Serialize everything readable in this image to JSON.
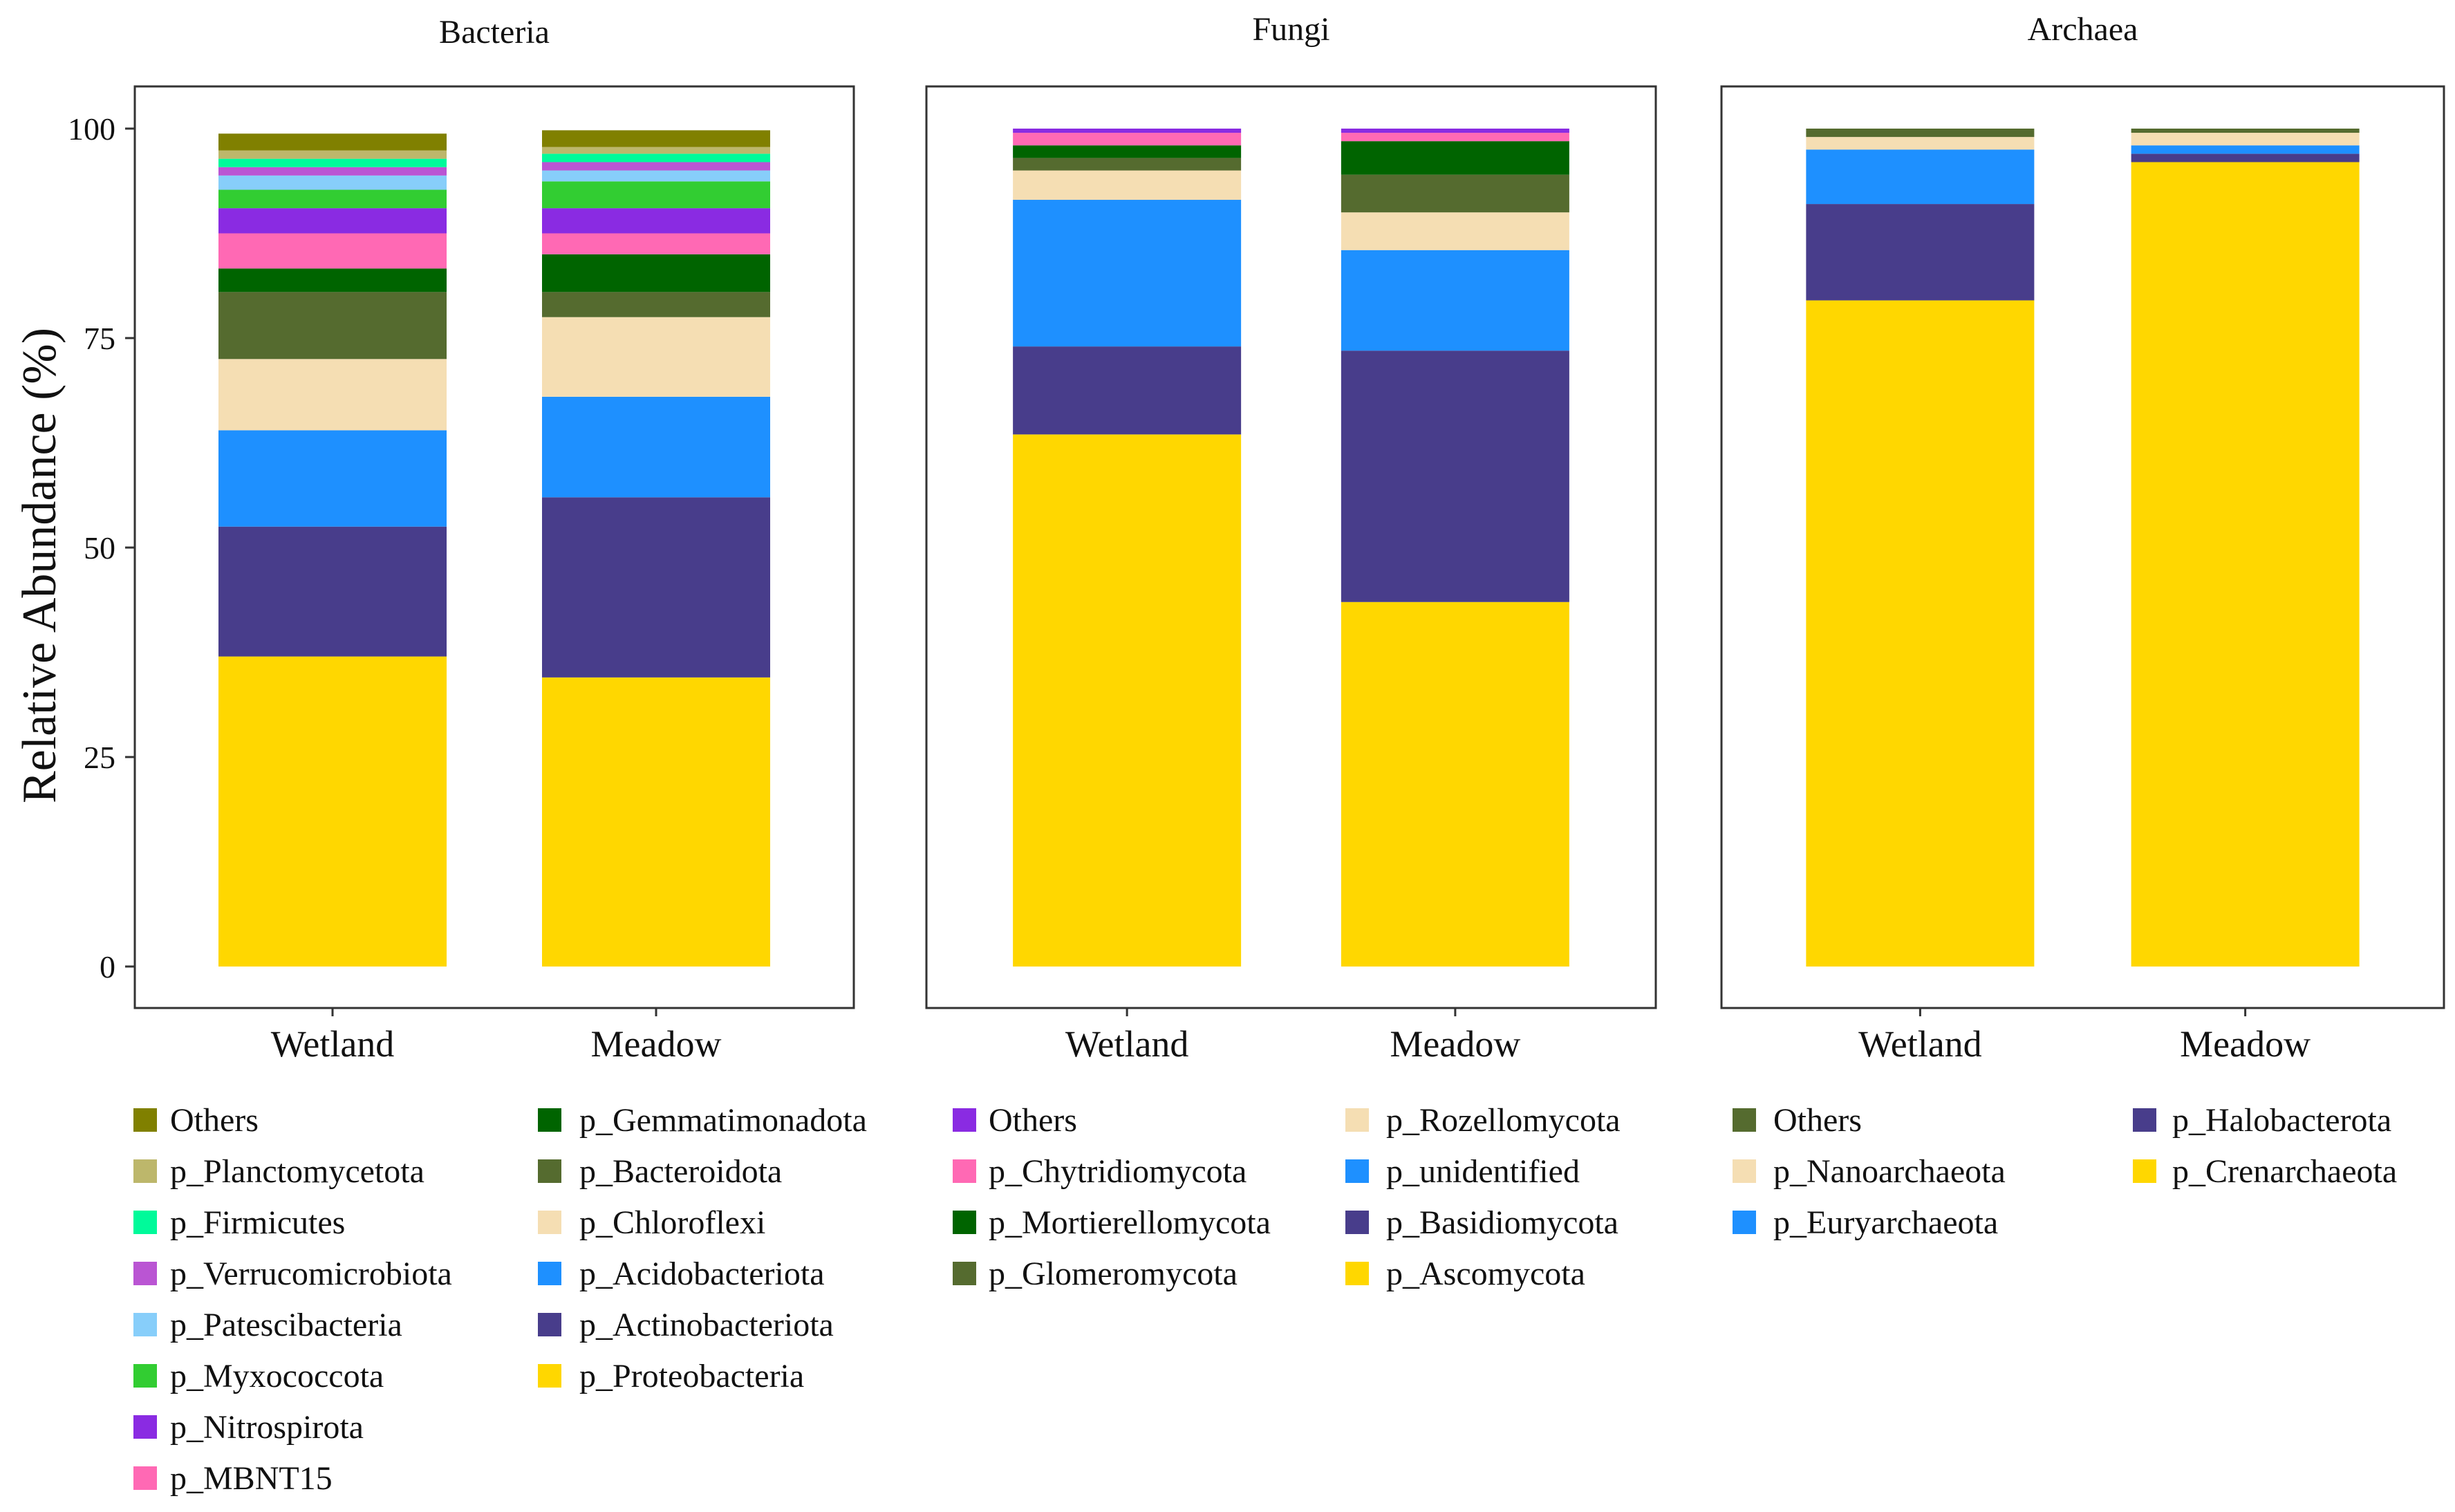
{
  "y_axis_label": "Relative Abundance (%)",
  "chart_data": [
    {
      "type": "bar",
      "stacked": true,
      "title": "Bacteria",
      "xlabel": "",
      "ylabel": "Relative Abundance (%)",
      "ylim": [
        0,
        100
      ],
      "y_ticks": [
        0,
        25,
        50,
        75,
        100
      ],
      "categories": [
        "Wetland",
        "Meadow"
      ],
      "series": [
        {
          "name": "p_Proteobacteria",
          "color": "#FFD700",
          "values": [
            37.0,
            34.5
          ]
        },
        {
          "name": "p_Actinobacteriota",
          "color": "#483D8B",
          "values": [
            15.5,
            21.5
          ]
        },
        {
          "name": "p_Acidobacteriota",
          "color": "#1E90FF",
          "values": [
            11.5,
            12.0
          ]
        },
        {
          "name": "p_Chloroflexi",
          "color": "#F5DEB3",
          "values": [
            8.5,
            9.5
          ]
        },
        {
          "name": "p_Bacteroidota",
          "color": "#556B2F",
          "values": [
            8.0,
            3.0
          ]
        },
        {
          "name": "p_Gemmatimonadota",
          "color": "#006400",
          "values": [
            2.8,
            4.5
          ]
        },
        {
          "name": "p_MBNT15",
          "color": "#FF69B4",
          "values": [
            4.2,
            2.5
          ]
        },
        {
          "name": "p_Nitrospirota",
          "color": "#8A2BE2",
          "values": [
            3.0,
            3.0
          ]
        },
        {
          "name": "p_Myxococcota",
          "color": "#32CD32",
          "values": [
            2.2,
            3.2
          ]
        },
        {
          "name": "p_Patescibacteria",
          "color": "#87CEFA",
          "values": [
            1.7,
            1.3
          ]
        },
        {
          "name": "p_Verrucomicrobiota",
          "color": "#BA55D3",
          "values": [
            1.0,
            1.0
          ]
        },
        {
          "name": "p_Firmicutes",
          "color": "#00FA9A",
          "values": [
            1.0,
            1.0
          ]
        },
        {
          "name": "p_Planctomycetota",
          "color": "#BDB76B",
          "values": [
            1.0,
            0.8
          ]
        },
        {
          "name": "Others",
          "color": "#808000",
          "values": [
            2.0,
            2.0
          ]
        }
      ],
      "legend_columns": [
        [
          "Others",
          "p_Planctomycetota",
          "p_Firmicutes",
          "p_Verrucomicrobiota",
          "p_Patescibacteria",
          "p_Myxococcota",
          "p_Nitrospirota",
          "p_MBNT15"
        ],
        [
          "p_Gemmatimonadota",
          "p_Bacteroidota",
          "p_Chloroflexi",
          "p_Acidobacteriota",
          "p_Actinobacteriota",
          "p_Proteobacteria"
        ]
      ]
    },
    {
      "type": "bar",
      "stacked": true,
      "title": "Fungi",
      "xlabel": "",
      "ylabel": "Relative Abundance (%)",
      "ylim": [
        0,
        100
      ],
      "y_ticks": [
        0,
        25,
        50,
        75,
        100
      ],
      "categories": [
        "Wetland",
        "Meadow"
      ],
      "series": [
        {
          "name": "p_Ascomycota",
          "color": "#FFD700",
          "values": [
            63.5,
            43.5
          ]
        },
        {
          "name": "p_Basidiomycota",
          "color": "#483D8B",
          "values": [
            10.5,
            30.0
          ]
        },
        {
          "name": "p_unidentified",
          "color": "#1E90FF",
          "values": [
            17.5,
            12.0
          ]
        },
        {
          "name": "p_Rozellomycota",
          "color": "#F5DEB3",
          "values": [
            3.5,
            4.5
          ]
        },
        {
          "name": "p_Glomeromycota",
          "color": "#556B2F",
          "values": [
            1.5,
            4.5
          ]
        },
        {
          "name": "p_Mortierellomycota",
          "color": "#006400",
          "values": [
            1.5,
            4.0
          ]
        },
        {
          "name": "p_Chytridiomycota",
          "color": "#FF69B4",
          "values": [
            1.5,
            1.0
          ]
        },
        {
          "name": "Others",
          "color": "#8A2BE2",
          "values": [
            0.5,
            0.5
          ]
        }
      ],
      "legend_columns": [
        [
          "Others",
          "p_Chytridiomycota",
          "p_Mortierellomycota",
          "p_Glomeromycota"
        ],
        [
          "p_Rozellomycota",
          "p_unidentified",
          "p_Basidiomycota",
          "p_Ascomycota"
        ]
      ]
    },
    {
      "type": "bar",
      "stacked": true,
      "title": "Archaea",
      "xlabel": "",
      "ylabel": "Relative Abundance (%)",
      "ylim": [
        0,
        100
      ],
      "y_ticks": [
        0,
        25,
        50,
        75,
        100
      ],
      "categories": [
        "Wetland",
        "Meadow"
      ],
      "series": [
        {
          "name": "p_Crenarchaeota",
          "color": "#FFD700",
          "values": [
            79.5,
            96.0
          ]
        },
        {
          "name": "p_Halobacterota",
          "color": "#483D8B",
          "values": [
            11.5,
            1.0
          ]
        },
        {
          "name": "p_Euryarchaeota",
          "color": "#1E90FF",
          "values": [
            6.5,
            1.0
          ]
        },
        {
          "name": "p_Nanoarchaeota",
          "color": "#F5DEB3",
          "values": [
            1.5,
            1.5
          ]
        },
        {
          "name": "Others",
          "color": "#556B2F",
          "values": [
            1.0,
            0.5
          ]
        }
      ],
      "legend_columns": [
        [
          "Others",
          "p_Nanoarchaeota",
          "p_Euryarchaeota"
        ],
        [
          "p_Halobacterota",
          "p_Crenarchaeota"
        ]
      ]
    }
  ]
}
